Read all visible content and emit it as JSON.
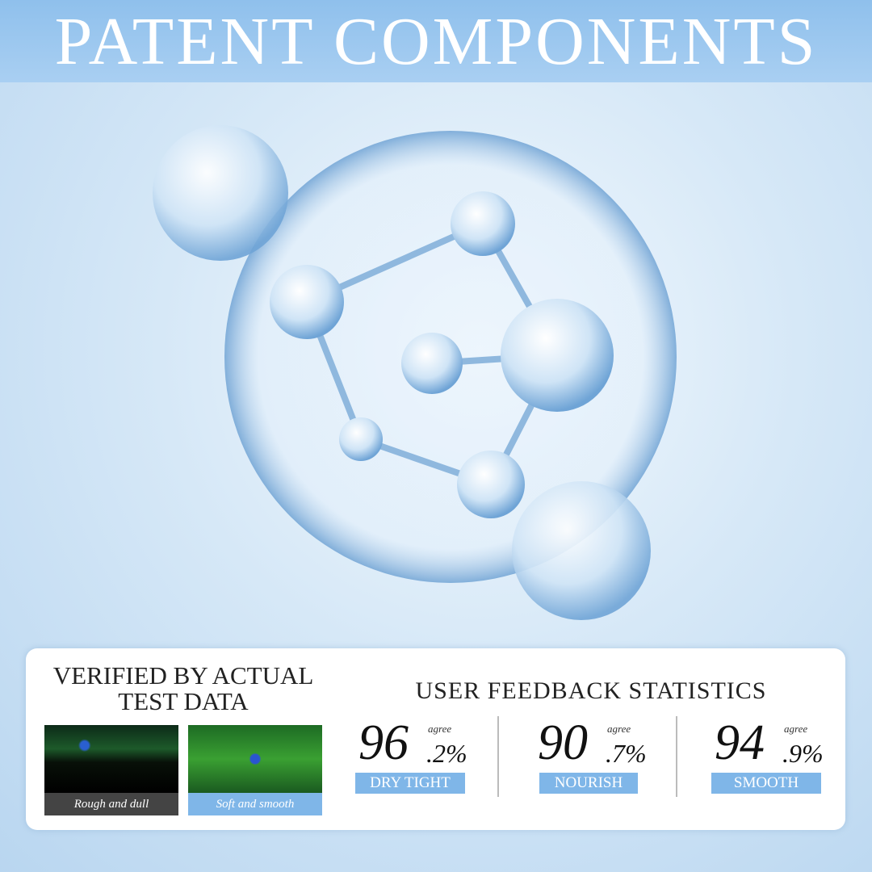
{
  "header": {
    "title": "PATENT COMPONENTS"
  },
  "colors": {
    "header": "#8fc0ec",
    "label_bg": "#7fb6e8",
    "caption_dark": "#444444"
  },
  "test": {
    "title": "VERIFIED BY ACTUAL TEST DATA",
    "images": [
      {
        "caption": "Rough and dull"
      },
      {
        "caption": "Soft and smooth"
      }
    ]
  },
  "stats": {
    "title": "USER FEEDBACK STATISTICS",
    "items": [
      {
        "whole": "96",
        "decimal": ".2%",
        "agree": "agree",
        "label": "DRY TIGHT"
      },
      {
        "whole": "90",
        "decimal": ".7%",
        "agree": "agree",
        "label": "NOURISH"
      },
      {
        "whole": "94",
        "decimal": ".9%",
        "agree": "agree",
        "label": "SMOOTH"
      }
    ]
  }
}
